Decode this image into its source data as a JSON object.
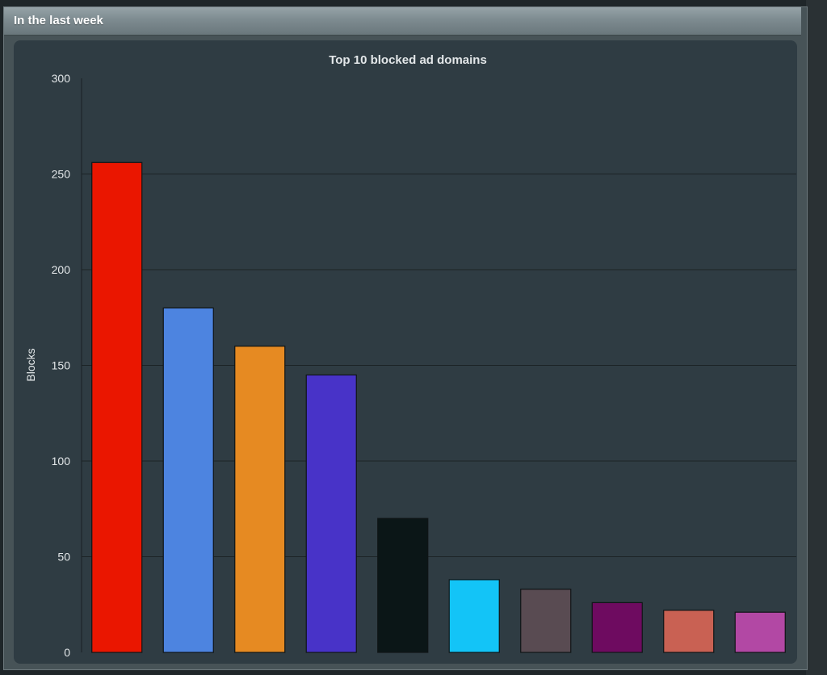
{
  "panel": {
    "title": "In the last week"
  },
  "chart_data": {
    "type": "bar",
    "title": "Top 10 blocked ad domains",
    "xlabel": "",
    "ylabel": "Blocks",
    "ylim": [
      0,
      300
    ],
    "yticks": [
      0,
      50,
      100,
      150,
      200,
      250,
      300
    ],
    "grid": true,
    "legend": "none",
    "values": [
      256,
      180,
      160,
      145,
      70,
      38,
      33,
      26,
      22,
      21
    ],
    "colors": [
      "#ea1600",
      "#4d84e0",
      "#e68a22",
      "#4833c8",
      "#0b1617",
      "#13c4f7",
      "#594b52",
      "#6e0b60",
      "#c96153",
      "#b248a4"
    ]
  }
}
